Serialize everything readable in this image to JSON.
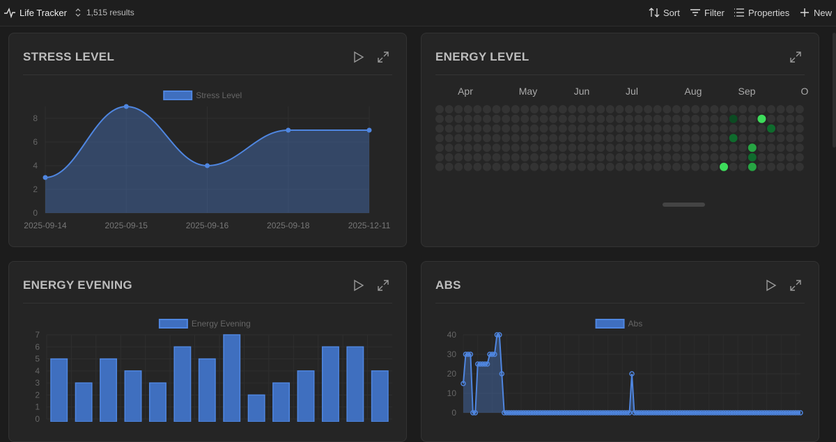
{
  "topbar": {
    "title": "Life Tracker",
    "results": "1,515 results",
    "sort": "Sort",
    "filter": "Filter",
    "properties": "Properties",
    "new": "New"
  },
  "colors": {
    "accent": "#4f86e0",
    "fill": "rgba(79,134,224,0.35)",
    "bar": "#3f6fbf",
    "green_light": "#3ddc5b",
    "green_mid": "#26a543",
    "green_dark": "#0f6b2d",
    "green_darkest": "#0c4a22",
    "cell": "#333333"
  },
  "cards": {
    "stress": {
      "title": "STRESS LEVEL"
    },
    "energy": {
      "title": "ENERGY LEVEL",
      "months": [
        "Apr",
        "May",
        "Jun",
        "Jul",
        "Aug",
        "Sep",
        "O"
      ]
    },
    "evening": {
      "title": "ENERGY EVENING"
    },
    "abs": {
      "title": "ABS"
    }
  },
  "chart_data": [
    {
      "type": "line",
      "title": "STRESS LEVEL",
      "legend": "Stress Level",
      "categories": [
        "2025-09-14",
        "2025-09-15",
        "2025-09-16",
        "2025-09-18",
        "2025-12-11"
      ],
      "values": [
        3,
        9,
        4,
        7,
        7
      ],
      "ylim": [
        0,
        9
      ],
      "yticks": [
        "0",
        "2",
        "4",
        "6",
        "8"
      ]
    },
    {
      "type": "heatmap",
      "title": "ENERGY LEVEL",
      "rows": 7,
      "columns": 39,
      "highlights": [
        {
          "col": 31,
          "row": 1,
          "level": 1
        },
        {
          "col": 34,
          "row": 1,
          "level": 4
        },
        {
          "col": 35,
          "row": 2,
          "level": 2
        },
        {
          "col": 31,
          "row": 3,
          "level": 2
        },
        {
          "col": 33,
          "row": 4,
          "level": 3
        },
        {
          "col": 33,
          "row": 5,
          "level": 2
        },
        {
          "col": 30,
          "row": 6,
          "level": 4
        },
        {
          "col": 33,
          "row": 6,
          "level": 3
        }
      ]
    },
    {
      "type": "bar",
      "title": "ENERGY EVENING",
      "legend": "Energy Evening",
      "values": [
        5,
        3,
        5,
        4,
        3,
        6,
        5,
        7,
        2,
        3,
        4,
        6,
        6,
        4
      ],
      "ylim": [
        0,
        7
      ],
      "yticks": [
        "0",
        "1",
        "2",
        "3",
        "4",
        "5",
        "6",
        "7"
      ]
    },
    {
      "type": "area",
      "title": "ABS",
      "legend": "Abs",
      "values": [
        15,
        30,
        30,
        30,
        0,
        0,
        25,
        25,
        25,
        25,
        25,
        30,
        30,
        30,
        40,
        40,
        20,
        0,
        0,
        0,
        0,
        0,
        0,
        0,
        0,
        0,
        0,
        0,
        0,
        0,
        0,
        0,
        0,
        0,
        0,
        0,
        0,
        0,
        0,
        0,
        0,
        0,
        0,
        0,
        0,
        0,
        0,
        0,
        0,
        0,
        0,
        0,
        0,
        0,
        0,
        0,
        0,
        0,
        0,
        0,
        0,
        0,
        0,
        0,
        0,
        0,
        0,
        0,
        0,
        0,
        20,
        0,
        0,
        0,
        0,
        0,
        0,
        0,
        0,
        0,
        0,
        0,
        0,
        0,
        0,
        0,
        0,
        0,
        0,
        0,
        0,
        0,
        0,
        0,
        0,
        0,
        0,
        0,
        0,
        0,
        0,
        0,
        0,
        0,
        0,
        0,
        0,
        0,
        0,
        0,
        0,
        0,
        0,
        0,
        0,
        0,
        0,
        0,
        0,
        0,
        0,
        0,
        0,
        0,
        0,
        0,
        0,
        0,
        0,
        0,
        0,
        0,
        0,
        0,
        0,
        0,
        0,
        0,
        0,
        0,
        0
      ],
      "ylim": [
        0,
        40
      ],
      "yticks": [
        "0",
        "10",
        "20",
        "30",
        "40"
      ]
    }
  ]
}
